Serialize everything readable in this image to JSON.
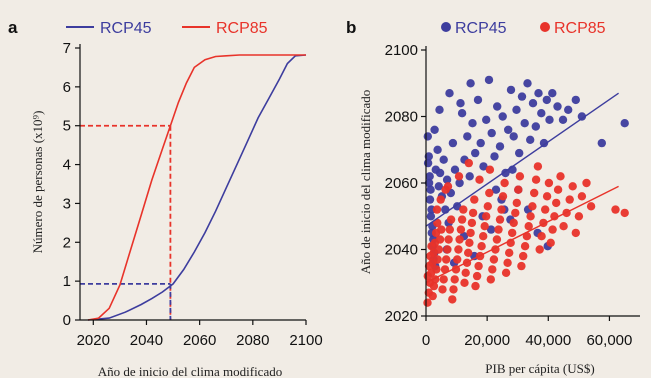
{
  "chart_data": [
    {
      "panel": "a",
      "type": "line",
      "xlabel": "Año de inicio del clima modificado",
      "ylabel": "Número de personas (x10⁹)",
      "xlim": [
        2015,
        2100
      ],
      "ylim": [
        0,
        7
      ],
      "xticks": [
        "2020",
        "2040",
        "2060",
        "2080",
        "2100"
      ],
      "yticks": [
        "0",
        "1",
        "2",
        "3",
        "4",
        "5",
        "6",
        "7"
      ],
      "legend_position": "top",
      "series": [
        {
          "name": "RCP45",
          "color": "#3d3d9e",
          "x": [
            2018,
            2026,
            2032,
            2038,
            2042,
            2046,
            2050,
            2054,
            2058,
            2062,
            2066,
            2070,
            2074,
            2078,
            2082,
            2086,
            2090,
            2093,
            2096,
            2100
          ],
          "y": [
            0,
            0.05,
            0.2,
            0.4,
            0.55,
            0.72,
            0.93,
            1.3,
            1.75,
            2.25,
            2.8,
            3.4,
            4.0,
            4.6,
            5.2,
            5.7,
            6.2,
            6.6,
            6.8,
            6.82
          ]
        },
        {
          "name": "RCP85",
          "color": "#e8332a",
          "x": [
            2018,
            2022,
            2026,
            2030,
            2034,
            2038,
            2042,
            2046,
            2049,
            2052,
            2055,
            2058,
            2062,
            2066,
            2070,
            2075,
            2080,
            2090,
            2100
          ],
          "y": [
            0,
            0.05,
            0.3,
            0.9,
            1.8,
            2.7,
            3.6,
            4.4,
            5.0,
            5.6,
            6.1,
            6.5,
            6.7,
            6.78,
            6.8,
            6.82,
            6.82,
            6.82,
            6.82
          ]
        }
      ],
      "guides": [
        {
          "color": "#e8332a",
          "y": 5,
          "x": 2049
        },
        {
          "color": "#3d3d9e",
          "y": 0.93,
          "x": 2049
        }
      ]
    },
    {
      "panel": "b",
      "type": "scatter",
      "xlabel": "PIB per cápita (US$)",
      "ylabel": "Año de inicio del clima modificado",
      "xlim": [
        0,
        70000
      ],
      "ylim": [
        2020,
        2100
      ],
      "xticks": [
        "0",
        "20,000",
        "40,000",
        "60,000"
      ],
      "yticks": [
        "2020",
        "2040",
        "2060",
        "2080",
        "2100"
      ],
      "legend_position": "top",
      "series": [
        {
          "name": "RCP45",
          "color": "#3d3d9e",
          "points": [
            [
              600,
              2074
            ],
            [
              900,
              2068
            ],
            [
              1200,
              2062
            ],
            [
              1500,
              2058
            ],
            [
              1800,
              2052
            ],
            [
              2100,
              2047
            ],
            [
              2400,
              2043
            ],
            [
              2700,
              2039
            ],
            [
              3000,
              2035
            ],
            [
              700,
              2066
            ],
            [
              1000,
              2060
            ],
            [
              1300,
              2055
            ],
            [
              1600,
              2050
            ],
            [
              1900,
              2045
            ],
            [
              2200,
              2041
            ],
            [
              2500,
              2037
            ],
            [
              3200,
              2064
            ],
            [
              3800,
              2070
            ],
            [
              4200,
              2059
            ],
            [
              4600,
              2063
            ],
            [
              5200,
              2056
            ],
            [
              5800,
              2067
            ],
            [
              6300,
              2052
            ],
            [
              6900,
              2061
            ],
            [
              7400,
              2048
            ],
            [
              8100,
              2057
            ],
            [
              8800,
              2072
            ],
            [
              9500,
              2064
            ],
            [
              10200,
              2053
            ],
            [
              11000,
              2060
            ],
            [
              11800,
              2081
            ],
            [
              12600,
              2067
            ],
            [
              13500,
              2074
            ],
            [
              14300,
              2062
            ],
            [
              15200,
              2078
            ],
            [
              16100,
              2069
            ],
            [
              17000,
              2085
            ],
            [
              17900,
              2072
            ],
            [
              18800,
              2065
            ],
            [
              19700,
              2079
            ],
            [
              20600,
              2091
            ],
            [
              21500,
              2075
            ],
            [
              22400,
              2068
            ],
            [
              23300,
              2083
            ],
            [
              24200,
              2071
            ],
            [
              25100,
              2080
            ],
            [
              26000,
              2063
            ],
            [
              26900,
              2076
            ],
            [
              27800,
              2088
            ],
            [
              28700,
              2074
            ],
            [
              29600,
              2082
            ],
            [
              30500,
              2069
            ],
            [
              31400,
              2086
            ],
            [
              32300,
              2078
            ],
            [
              33200,
              2090
            ],
            [
              34100,
              2073
            ],
            [
              35000,
              2084
            ],
            [
              35900,
              2077
            ],
            [
              36800,
              2087
            ],
            [
              37700,
              2081
            ],
            [
              38600,
              2072
            ],
            [
              39500,
              2085
            ],
            [
              40400,
              2079
            ],
            [
              41300,
              2087
            ],
            [
              43000,
              2083
            ],
            [
              44800,
              2079
            ],
            [
              46500,
              2082
            ],
            [
              49000,
              2085
            ],
            [
              51000,
              2080
            ],
            [
              57500,
              2072
            ],
            [
              65000,
              2078
            ],
            [
              6800,
              2040
            ],
            [
              9200,
              2036
            ],
            [
              12400,
              2044
            ],
            [
              15800,
              2038
            ],
            [
              18500,
              2050
            ],
            [
              21300,
              2046
            ],
            [
              24700,
              2055
            ],
            [
              27600,
              2049
            ],
            [
              30200,
              2058
            ],
            [
              33400,
              2052
            ],
            [
              36500,
              2045
            ],
            [
              39800,
              2041
            ],
            [
              2800,
              2076
            ],
            [
              4400,
              2082
            ],
            [
              7700,
              2087
            ],
            [
              11300,
              2084
            ],
            [
              14600,
              2090
            ],
            [
              22900,
              2058
            ],
            [
              25600,
              2052
            ],
            [
              28300,
              2064
            ]
          ]
        },
        {
          "name": "RCP85",
          "color": "#e8332a",
          "points": [
            [
              500,
              2024
            ],
            [
              900,
              2027
            ],
            [
              1300,
              2030
            ],
            [
              1700,
              2033
            ],
            [
              2100,
              2036
            ],
            [
              2500,
              2039
            ],
            [
              2900,
              2042
            ],
            [
              3300,
              2045
            ],
            [
              3700,
              2048
            ],
            [
              600,
              2032
            ],
            [
              1000,
              2035
            ],
            [
              1400,
              2038
            ],
            [
              1800,
              2041
            ],
            [
              2200,
              2026
            ],
            [
              2600,
              2029
            ],
            [
              3000,
              2031
            ],
            [
              3400,
              2034
            ],
            [
              3800,
              2037
            ],
            [
              4200,
              2040
            ],
            [
              4600,
              2043
            ],
            [
              5000,
              2046
            ],
            [
              5400,
              2028
            ],
            [
              5800,
              2031
            ],
            [
              6200,
              2034
            ],
            [
              6600,
              2037
            ],
            [
              7000,
              2040
            ],
            [
              7400,
              2043
            ],
            [
              7800,
              2046
            ],
            [
              8200,
              2049
            ],
            [
              8600,
              2025
            ],
            [
              9000,
              2028
            ],
            [
              9400,
              2031
            ],
            [
              9800,
              2034
            ],
            [
              10200,
              2037
            ],
            [
              10600,
              2040
            ],
            [
              11000,
              2043
            ],
            [
              11400,
              2046
            ],
            [
              11800,
              2049
            ],
            [
              12200,
              2052
            ],
            [
              12600,
              2030
            ],
            [
              13000,
              2033
            ],
            [
              13400,
              2036
            ],
            [
              13800,
              2039
            ],
            [
              14200,
              2042
            ],
            [
              14600,
              2045
            ],
            [
              15000,
              2048
            ],
            [
              15400,
              2051
            ],
            [
              15800,
              2055
            ],
            [
              16200,
              2029
            ],
            [
              16700,
              2032
            ],
            [
              17200,
              2035
            ],
            [
              17700,
              2038
            ],
            [
              18200,
              2041
            ],
            [
              18700,
              2044
            ],
            [
              19200,
              2047
            ],
            [
              19700,
              2050
            ],
            [
              20200,
              2053
            ],
            [
              20700,
              2057
            ],
            [
              21200,
              2031
            ],
            [
              21700,
              2034
            ],
            [
              22200,
              2037
            ],
            [
              22700,
              2040
            ],
            [
              23200,
              2043
            ],
            [
              23700,
              2046
            ],
            [
              24200,
              2049
            ],
            [
              24700,
              2052
            ],
            [
              25200,
              2056
            ],
            [
              25700,
              2060
            ],
            [
              26200,
              2033
            ],
            [
              26700,
              2036
            ],
            [
              27200,
              2039
            ],
            [
              27700,
              2042
            ],
            [
              28200,
              2045
            ],
            [
              28700,
              2048
            ],
            [
              29200,
              2051
            ],
            [
              29700,
              2054
            ],
            [
              30200,
              2058
            ],
            [
              30700,
              2062
            ],
            [
              31200,
              2035
            ],
            [
              31800,
              2038
            ],
            [
              32400,
              2041
            ],
            [
              33000,
              2044
            ],
            [
              33600,
              2047
            ],
            [
              34200,
              2050
            ],
            [
              34800,
              2053
            ],
            [
              35400,
              2057
            ],
            [
              36000,
              2061
            ],
            [
              36600,
              2065
            ],
            [
              37200,
              2040
            ],
            [
              37800,
              2044
            ],
            [
              38400,
              2048
            ],
            [
              39000,
              2052
            ],
            [
              39600,
              2056
            ],
            [
              40200,
              2060
            ],
            [
              40800,
              2042
            ],
            [
              41400,
              2046
            ],
            [
              42000,
              2050
            ],
            [
              42600,
              2054
            ],
            [
              43200,
              2058
            ],
            [
              44000,
              2062
            ],
            [
              45000,
              2047
            ],
            [
              46000,
              2051
            ],
            [
              47000,
              2055
            ],
            [
              48000,
              2059
            ],
            [
              49000,
              2045
            ],
            [
              50000,
              2050
            ],
            [
              51000,
              2056
            ],
            [
              52500,
              2060
            ],
            [
              54000,
              2053
            ],
            [
              62000,
              2052
            ],
            [
              65000,
              2051
            ],
            [
              7200,
              2059
            ],
            [
              10800,
              2062
            ],
            [
              14000,
              2066
            ],
            [
              17500,
              2061
            ],
            [
              20900,
              2064
            ],
            [
              3600,
              2052
            ],
            [
              4800,
              2055
            ],
            [
              6400,
              2058
            ]
          ]
        }
      ],
      "trendlines": [
        {
          "color": "#3d3d9e",
          "from": [
            0,
            2047
          ],
          "to": [
            63000,
            2087
          ]
        },
        {
          "color": "#e8332a",
          "from": [
            0,
            2030
          ],
          "to": [
            63000,
            2059
          ]
        }
      ]
    }
  ]
}
